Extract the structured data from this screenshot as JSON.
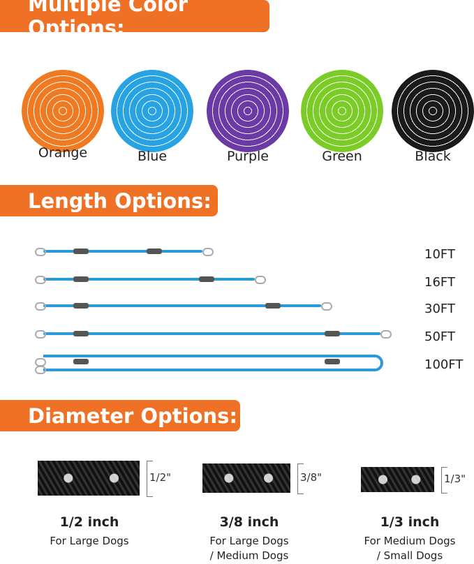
{
  "colors": {
    "accent": "#ee7125",
    "rope_blue": "#2a9ad8"
  },
  "sections": {
    "color_title": "Multiple Color Options:",
    "length_title": "Length Options:",
    "diameter_title": "Diameter Options:"
  },
  "color_options": [
    {
      "label": "Orange",
      "color": "#f07a22"
    },
    {
      "label": "Blue",
      "color": "#27a3e3"
    },
    {
      "label": "Purple",
      "color": "#6a3aa6"
    },
    {
      "label": "Green",
      "color": "#7ccc28"
    },
    {
      "label": "Black",
      "color": "#1a1a1a"
    }
  ],
  "length_options": [
    "10FT",
    "16FT",
    "30FT",
    "50FT",
    "100FT"
  ],
  "diameter_options": [
    {
      "marker": "1/2\"",
      "title": "1/2 inch",
      "line1": "For Large Dogs",
      "line2": ""
    },
    {
      "marker": "3/8\"",
      "title": "3/8 inch",
      "line1": "For Large Dogs",
      "line2": "/ Medium Dogs"
    },
    {
      "marker": "1/3\"",
      "title": "1/3 inch",
      "line1": "For Medium Dogs",
      "line2": "/ Small Dogs"
    }
  ]
}
